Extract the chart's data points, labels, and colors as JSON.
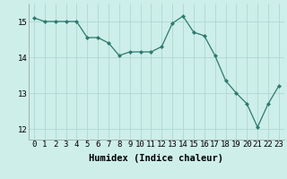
{
  "x": [
    0,
    1,
    2,
    3,
    4,
    5,
    6,
    7,
    8,
    9,
    10,
    11,
    12,
    13,
    14,
    15,
    16,
    17,
    18,
    19,
    20,
    21,
    22,
    23
  ],
  "y": [
    15.1,
    15.0,
    15.0,
    15.0,
    15.0,
    14.55,
    14.55,
    14.4,
    14.05,
    14.15,
    14.15,
    14.15,
    14.3,
    14.95,
    15.15,
    14.7,
    14.6,
    14.05,
    13.35,
    13.0,
    12.7,
    12.05,
    12.7,
    13.2
  ],
  "xlabel": "Humidex (Indice chaleur)",
  "ylim": [
    11.7,
    15.5
  ],
  "xlim": [
    -0.5,
    23.5
  ],
  "yticks": [
    12,
    13,
    14,
    15
  ],
  "xticks": [
    0,
    1,
    2,
    3,
    4,
    5,
    6,
    7,
    8,
    9,
    10,
    11,
    12,
    13,
    14,
    15,
    16,
    17,
    18,
    19,
    20,
    21,
    22,
    23
  ],
  "line_color": "#2d7a6e",
  "marker_color": "#2d7a6e",
  "bg_color": "#cdeee9",
  "grid_color": "#aed8d2",
  "xlabel_fontsize": 7.5,
  "tick_fontsize": 6.5
}
